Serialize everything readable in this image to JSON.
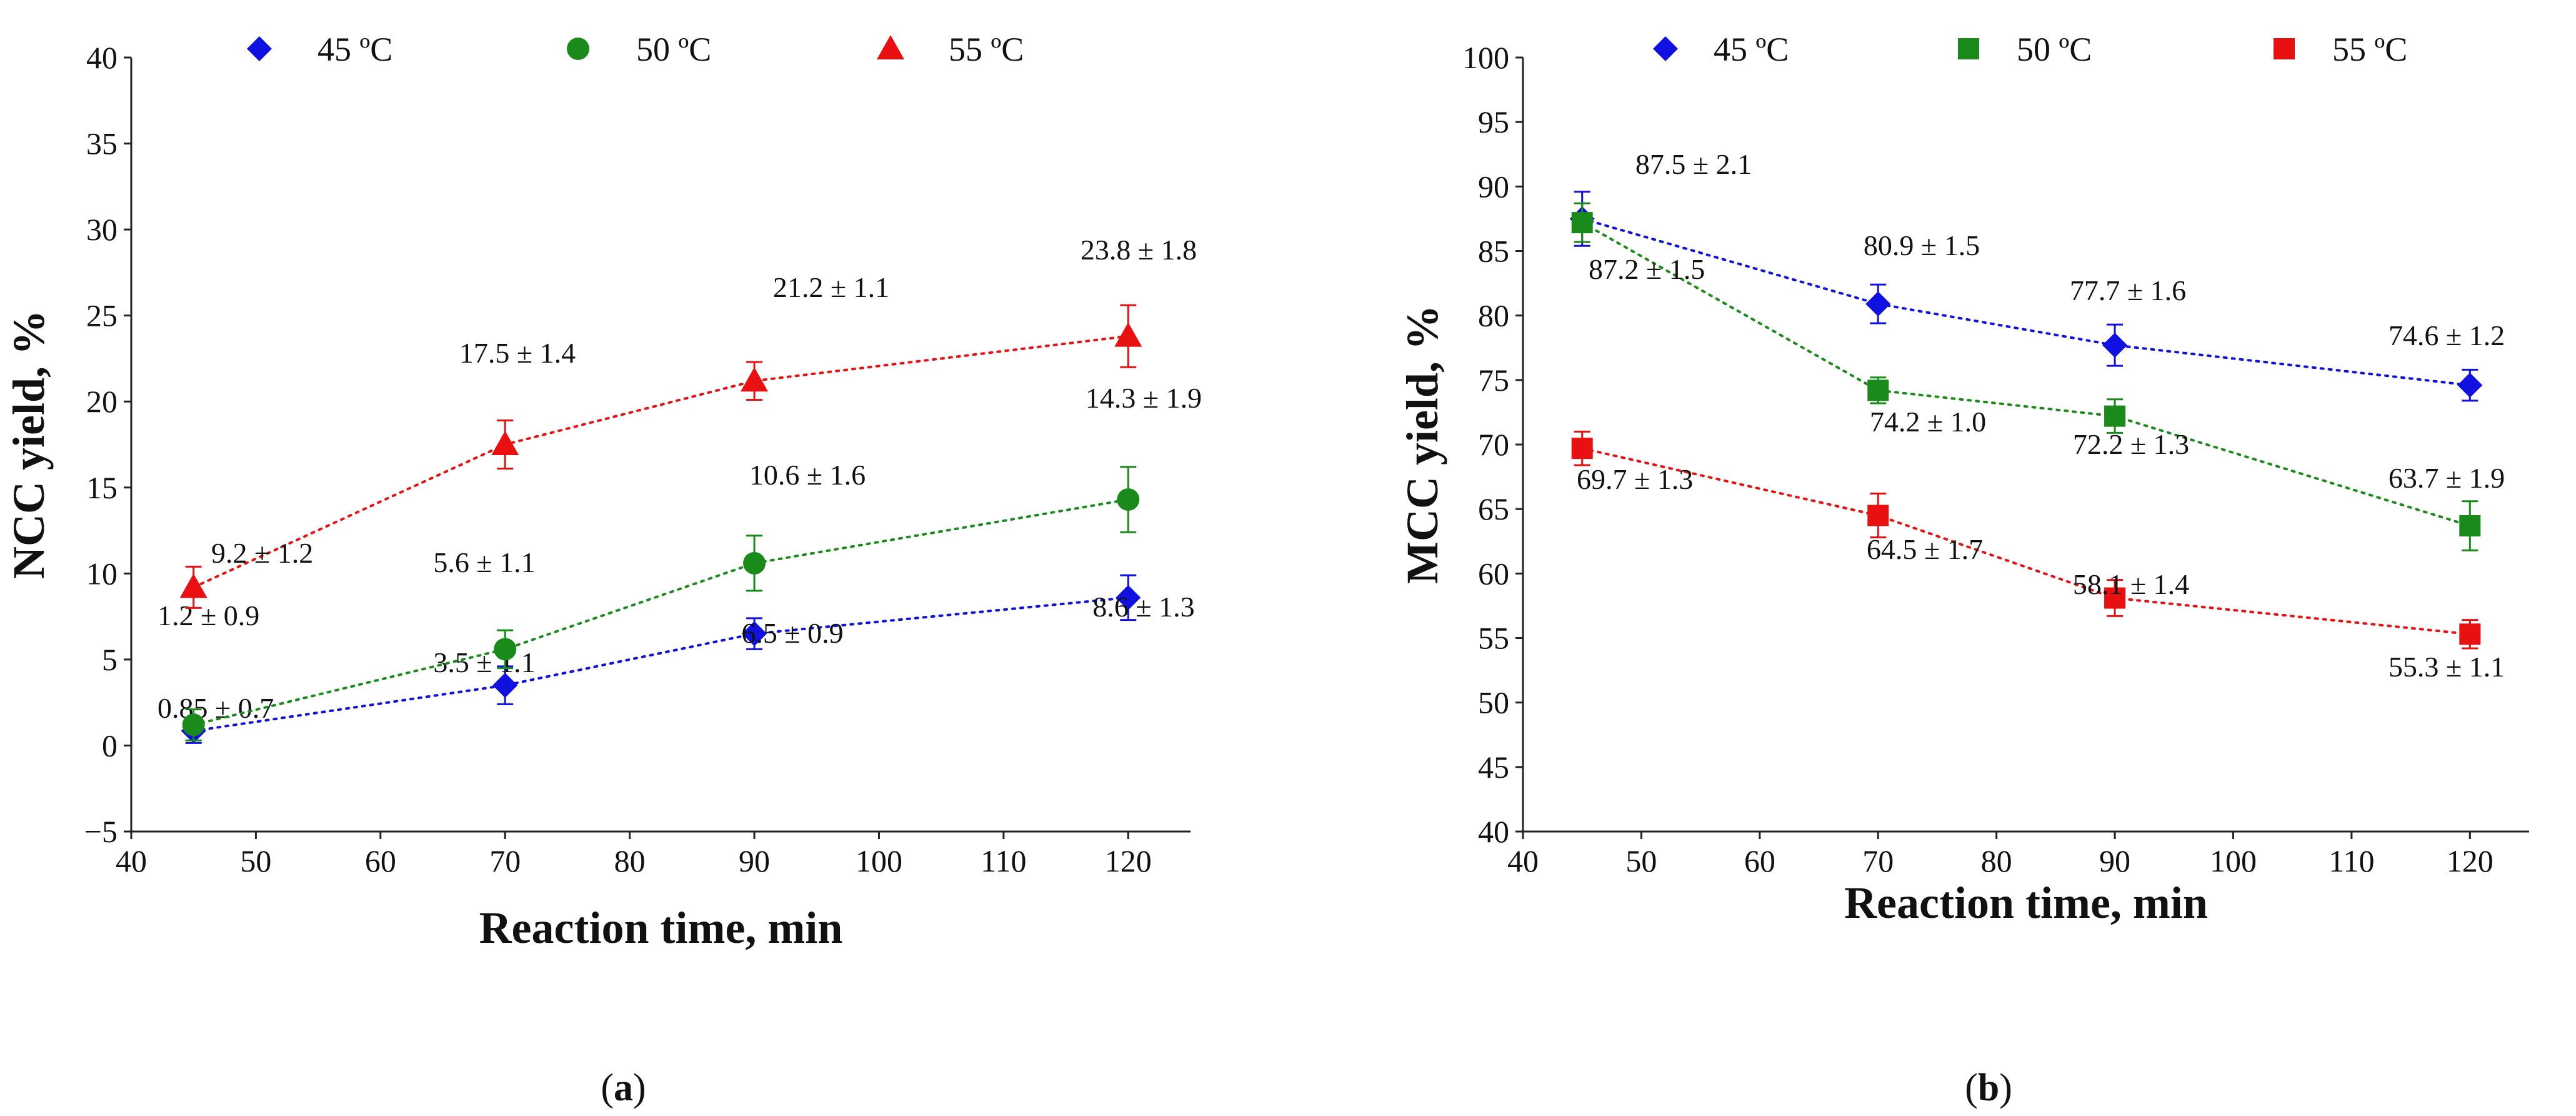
{
  "chart_data": [
    {
      "type": "scatter",
      "panel": "a",
      "caption_open": "(",
      "caption_letter": "a",
      "caption_close": ")",
      "xlabel": "Reaction time, min",
      "ylabel": "NCC yield, %",
      "xlim": [
        40,
        125
      ],
      "ylim": [
        -5,
        40
      ],
      "xticks": [
        40,
        50,
        60,
        70,
        80,
        90,
        100,
        110,
        120
      ],
      "yticks": [
        -5,
        0,
        5,
        10,
        15,
        20,
        25,
        30,
        35,
        40
      ],
      "ytick_labels": [
        "−5",
        "0",
        "5",
        "10",
        "15",
        "20",
        "25",
        "30",
        "35",
        "40"
      ],
      "grid": false,
      "legend_position": "top",
      "series": [
        {
          "name": "45 ºC",
          "color": "#1010e0",
          "marker": "diamond",
          "x": [
            45,
            70,
            90,
            120
          ],
          "y": [
            0.85,
            3.5,
            6.5,
            8.6
          ],
          "err": [
            0.7,
            1.1,
            0.9,
            1.3
          ],
          "labels": [
            "0.85 ± 0.7",
            "3.5 ± 1.1",
            "6.5 ± 0.9",
            "8.6 ± 1.3"
          ]
        },
        {
          "name": "50 ºC",
          "color": "#1a8a1a",
          "marker": "circle",
          "x": [
            45,
            70,
            90,
            120
          ],
          "y": [
            1.2,
            5.6,
            10.6,
            14.3
          ],
          "err": [
            0.9,
            1.1,
            1.6,
            1.9
          ],
          "labels": [
            "1.2 ± 0.9",
            "5.6 ± 1.1",
            "10.6 ± 1.6",
            "14.3 ± 1.9"
          ]
        },
        {
          "name": "55 ºC",
          "color": "#e81010",
          "marker": "triangle",
          "x": [
            45,
            70,
            90,
            120
          ],
          "y": [
            9.2,
            17.5,
            21.2,
            23.8
          ],
          "err": [
            1.2,
            1.4,
            1.1,
            1.8
          ],
          "labels": [
            "9.2 ± 1.2",
            "17.5 ± 1.4",
            "21.2 ± 1.1",
            "23.8 ± 1.8"
          ]
        }
      ]
    },
    {
      "type": "scatter",
      "panel": "b",
      "caption_open": "(",
      "caption_letter": "b",
      "caption_close": ")",
      "xlabel": "Reaction time, min",
      "ylabel": "MCC yield, %",
      "xlim": [
        40,
        125
      ],
      "ylim": [
        40,
        100
      ],
      "xticks": [
        40,
        50,
        60,
        70,
        80,
        90,
        100,
        110,
        120
      ],
      "yticks": [
        40,
        45,
        50,
        55,
        60,
        65,
        70,
        75,
        80,
        85,
        90,
        95,
        100
      ],
      "ytick_labels": [
        "40",
        "45",
        "50",
        "55",
        "60",
        "65",
        "70",
        "75",
        "80",
        "85",
        "90",
        "95",
        "100"
      ],
      "grid": false,
      "legend_position": "top",
      "series": [
        {
          "name": "45 ºC",
          "color": "#1010e0",
          "marker": "diamond",
          "x": [
            45,
            70,
            90,
            120
          ],
          "y": [
            87.5,
            80.9,
            77.7,
            74.6
          ],
          "err": [
            2.1,
            1.5,
            1.6,
            1.2
          ],
          "labels": [
            "87.5 ± 2.1",
            "80.9 ± 1.5",
            "77.7 ± 1.6",
            "74.6 ± 1.2"
          ]
        },
        {
          "name": "50 ºC",
          "color": "#1a8a1a",
          "marker": "square",
          "x": [
            45,
            70,
            90,
            120
          ],
          "y": [
            87.2,
            74.2,
            72.2,
            63.7
          ],
          "err": [
            1.5,
            1.0,
            1.3,
            1.9
          ],
          "labels": [
            "87.2 ± 1.5",
            "74.2 ± 1.0",
            "72.2 ± 1.3",
            "63.7 ± 1.9"
          ]
        },
        {
          "name": "55 ºC",
          "color": "#e81010",
          "marker": "square",
          "x": [
            45,
            70,
            90,
            120
          ],
          "y": [
            69.7,
            64.5,
            58.1,
            55.3
          ],
          "err": [
            1.3,
            1.7,
            1.4,
            1.1
          ],
          "labels": [
            "69.7 ± 1.3",
            "64.5 ± 1.7",
            "58.1 ± 1.4",
            "55.3 ± 1.1"
          ]
        }
      ]
    }
  ]
}
